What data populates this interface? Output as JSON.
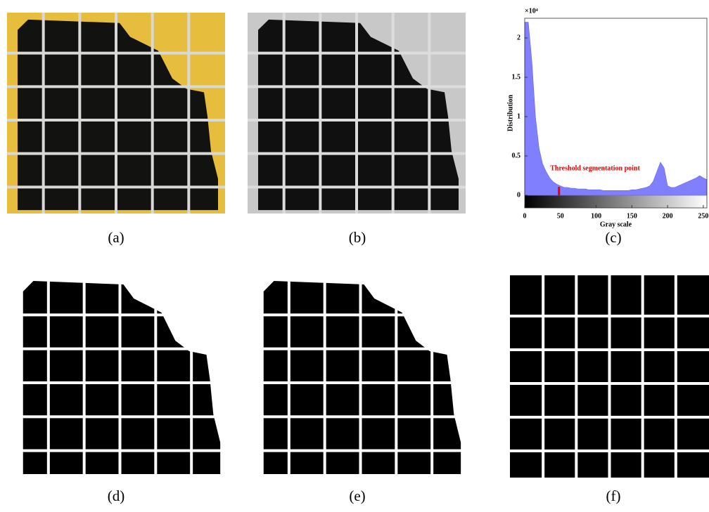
{
  "panels": [
    {
      "label": "(a)"
    },
    {
      "label": "(b)"
    },
    {
      "label": "(c)"
    },
    {
      "label": "(d)"
    },
    {
      "label": "(e)"
    },
    {
      "label": "(f)"
    }
  ],
  "chart_data": {
    "type": "area",
    "color": "#8080ff",
    "x_label": "Gray scale",
    "y_label": "Distribution",
    "y_scale_label": "×10⁴",
    "annotation": "Threshold segmentation point",
    "threshold": 48,
    "threshold_color": "#e00000",
    "x": [
      0,
      5,
      10,
      15,
      20,
      25,
      30,
      35,
      40,
      45,
      50,
      55,
      60,
      65,
      70,
      75,
      80,
      85,
      90,
      95,
      100,
      105,
      110,
      115,
      120,
      125,
      130,
      135,
      140,
      145,
      150,
      155,
      160,
      165,
      170,
      175,
      180,
      185,
      190,
      195,
      200,
      205,
      210,
      215,
      220,
      225,
      230,
      235,
      240,
      245,
      250,
      255
    ],
    "values": [
      2.2,
      2.2,
      1.7,
      1.0,
      0.6,
      0.4,
      0.3,
      0.22,
      0.17,
      0.14,
      0.12,
      0.1,
      0.1,
      0.09,
      0.09,
      0.08,
      0.08,
      0.08,
      0.07,
      0.07,
      0.07,
      0.07,
      0.06,
      0.06,
      0.06,
      0.06,
      0.06,
      0.06,
      0.06,
      0.06,
      0.07,
      0.07,
      0.08,
      0.09,
      0.1,
      0.12,
      0.18,
      0.3,
      0.42,
      0.35,
      0.12,
      0.1,
      0.1,
      0.12,
      0.14,
      0.16,
      0.18,
      0.2,
      0.22,
      0.25,
      0.22,
      0.2
    ],
    "xlim": [
      0,
      255
    ],
    "ylim": [
      -0.16,
      2.25
    ],
    "xticks": [
      0,
      50,
      100,
      150,
      200,
      250
    ],
    "yticks": [
      0,
      0.5,
      1,
      1.5,
      2
    ]
  }
}
